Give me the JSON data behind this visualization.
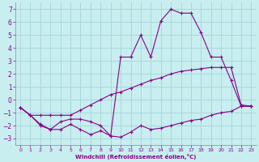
{
  "xlabel": "Windchill (Refroidissement éolien,°C)",
  "background_color": "#c8eef0",
  "grid_color": "#aad8dc",
  "line_color": "#880088",
  "xlim": [
    -0.5,
    23.5
  ],
  "ylim": [
    -3.5,
    7.5
  ],
  "yticks": [
    -3,
    -2,
    -1,
    0,
    1,
    2,
    3,
    4,
    5,
    6,
    7
  ],
  "xticks": [
    0,
    1,
    2,
    3,
    4,
    5,
    6,
    7,
    8,
    9,
    10,
    11,
    12,
    13,
    14,
    15,
    16,
    17,
    18,
    19,
    20,
    21,
    22,
    23
  ],
  "series": [
    {
      "x": [
        0,
        1,
        2,
        3,
        4,
        5,
        6,
        7,
        8,
        9,
        10,
        11,
        12,
        13,
        14,
        15,
        16,
        17,
        18,
        19,
        20,
        21,
        22,
        23
      ],
      "y": [
        -0.6,
        -1.2,
        -2.0,
        -2.3,
        -2.3,
        -1.9,
        -2.3,
        -2.7,
        -2.4,
        -2.8,
        -2.9,
        -2.5,
        -2.0,
        -2.3,
        -2.2,
        -2.0,
        -1.8,
        -1.6,
        -1.5,
        -1.2,
        -1.0,
        -0.9,
        -0.5,
        -0.5
      ]
    },
    {
      "x": [
        0,
        1,
        2,
        3,
        4,
        5,
        6,
        7,
        8,
        9,
        10,
        11,
        12,
        13,
        14,
        15,
        16,
        17,
        18,
        19,
        20,
        21,
        22,
        23
      ],
      "y": [
        -0.6,
        -1.2,
        -1.2,
        -1.2,
        -1.2,
        -1.2,
        -0.8,
        -0.4,
        0.0,
        0.4,
        0.6,
        0.9,
        1.2,
        1.5,
        1.7,
        2.0,
        2.2,
        2.3,
        2.4,
        2.5,
        2.5,
        2.5,
        -0.4,
        -0.5
      ]
    },
    {
      "x": [
        0,
        1,
        2,
        3,
        4,
        5,
        6,
        7,
        8,
        9,
        10,
        11,
        12,
        13,
        14,
        15,
        16,
        17,
        18,
        19,
        20,
        21,
        22,
        23
      ],
      "y": [
        -0.6,
        -1.2,
        -1.9,
        -2.3,
        -1.7,
        -1.5,
        -1.5,
        -1.7,
        -2.0,
        -2.8,
        3.3,
        3.3,
        5.0,
        3.3,
        6.1,
        7.0,
        6.7,
        6.7,
        5.2,
        3.3,
        3.3,
        1.5,
        -0.5,
        -0.5
      ]
    }
  ]
}
